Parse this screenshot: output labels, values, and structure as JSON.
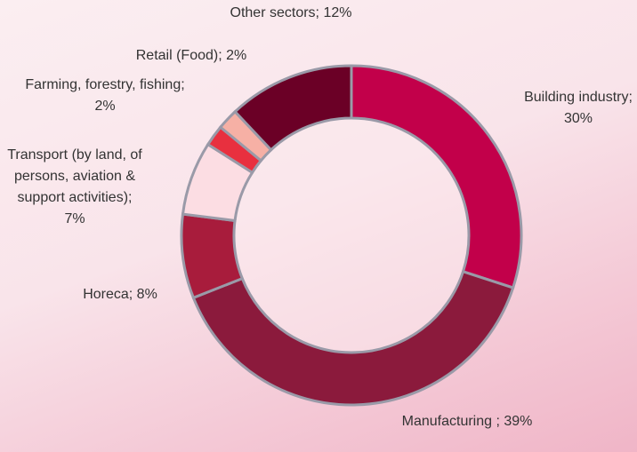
{
  "chart_data": {
    "type": "donut",
    "values": [
      30,
      39,
      8,
      7,
      2,
      2,
      12
    ],
    "value_labels": [
      "Building industry; 30%",
      "Manufacturing ; 39%",
      "Horeca; 8%",
      "Transport (by land, of persons, aviation & support activities); 7%",
      "Farming, forestry, fishing; 2%",
      "Retail (Food); 2%",
      "Other sectors; 12%"
    ],
    "colors": [
      "#c2004a",
      "#8b1a3c",
      "#a81c3c",
      "#fcdde3",
      "#e8303f",
      "#f6b0a5",
      "#6b0026"
    ]
  }
}
